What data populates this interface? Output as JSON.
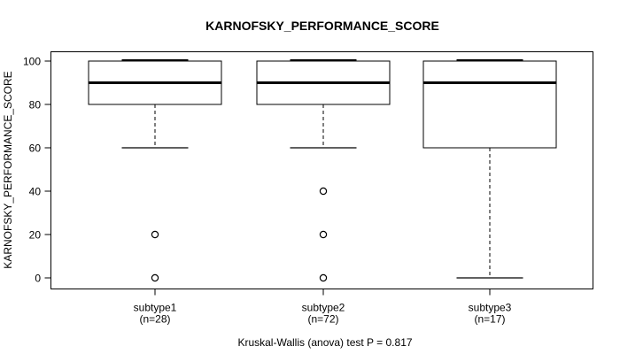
{
  "chart_data": {
    "type": "boxplot",
    "title": "KARNOFSKY_PERFORMANCE_SCORE",
    "ylabel": "KARNOFSKY_PERFORMANCE_SCORE",
    "footer": "Kruskal-Wallis (anova) test P = 0.817",
    "y_ticks": [
      0,
      20,
      40,
      60,
      80,
      100
    ],
    "ylim": [
      -5,
      105
    ],
    "grid": false,
    "legend": null,
    "groups": [
      {
        "label": "subtype1",
        "sublabel": "(n=28)",
        "n": 28,
        "whisker_high": 100,
        "q3": 100,
        "median": 90,
        "q1": 80,
        "whisker_low": 60,
        "outliers": [
          20,
          0
        ]
      },
      {
        "label": "subtype2",
        "sublabel": "(n=72)",
        "n": 72,
        "whisker_high": 100,
        "q3": 100,
        "median": 90,
        "q1": 80,
        "whisker_low": 60,
        "outliers": [
          40,
          20,
          0
        ]
      },
      {
        "label": "subtype3",
        "sublabel": "(n=17)",
        "n": 17,
        "whisker_high": 100,
        "q3": 100,
        "median": 90,
        "q1": 60,
        "whisker_low": 0,
        "outliers": []
      }
    ],
    "colors": {
      "line": "#000000",
      "box_fill": "#ffffff",
      "background": "#ffffff"
    }
  }
}
